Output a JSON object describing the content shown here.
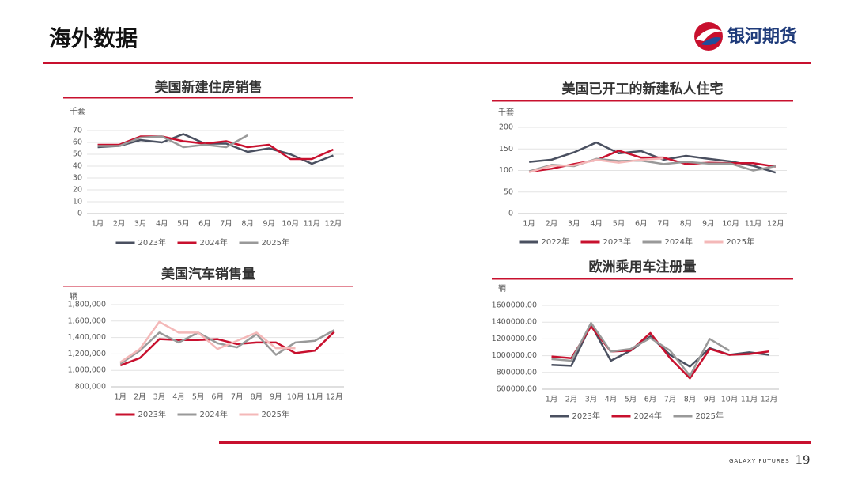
{
  "header": {
    "title": "海外数据",
    "brand": "银河期货"
  },
  "footer": {
    "tagline": "GALAXY FUTURES",
    "page": "19"
  },
  "chart_data": [
    {
      "type": "line",
      "title": "美国新建住房销售",
      "unit": "千套",
      "categories": [
        "1月",
        "2月",
        "3月",
        "4月",
        "5月",
        "6月",
        "7月",
        "8月",
        "9月",
        "10月",
        "11月",
        "12月"
      ],
      "ylim": [
        0,
        70
      ],
      "yticks": [
        0,
        10,
        20,
        30,
        40,
        50,
        60,
        70
      ],
      "grid": true,
      "series": [
        {
          "name": "2023年",
          "color": "#4a5060",
          "values": [
            56,
            57,
            62,
            60,
            67,
            59,
            59,
            52,
            55,
            50,
            42,
            49
          ]
        },
        {
          "name": "2024年",
          "color": "#c8102e",
          "values": [
            58,
            58,
            65,
            65,
            61,
            59,
            61,
            56,
            58,
            46,
            46,
            54
          ]
        },
        {
          "name": "2025年",
          "color": "#999999",
          "values": [
            57,
            57,
            64,
            65,
            56,
            58,
            56,
            66,
            null,
            null,
            null,
            null
          ]
        }
      ]
    },
    {
      "type": "line",
      "title": "美国已开工的新建私人住宅",
      "unit": "千套",
      "categories": [
        "1月",
        "2月",
        "3月",
        "4月",
        "5月",
        "6月",
        "7月",
        "8月",
        "9月",
        "10月",
        "11月",
        "12月"
      ],
      "ylim": [
        0,
        200
      ],
      "yticks": [
        0,
        50,
        100,
        150,
        200
      ],
      "grid": true,
      "series": [
        {
          "name": "2022年",
          "color": "#4a5060",
          "values": [
            120,
            125,
            142,
            165,
            140,
            145,
            125,
            134,
            127,
            121,
            111,
            95
          ]
        },
        {
          "name": "2023年",
          "color": "#c8102e",
          "values": [
            97,
            104,
            115,
            124,
            146,
            130,
            130,
            115,
            118,
            117,
            117,
            109
          ]
        },
        {
          "name": "2024年",
          "color": "#999999",
          "values": [
            98,
            113,
            110,
            127,
            122,
            123,
            115,
            120,
            116,
            116,
            100,
            110
          ]
        },
        {
          "name": "2025年",
          "color": "#f4b8b8",
          "values": [
            96,
            111,
            112,
            125,
            118,
            125,
            128,
            null,
            null,
            null,
            null,
            null
          ]
        }
      ]
    },
    {
      "type": "line",
      "title": "美国汽车销售量",
      "unit": "辆",
      "categories": [
        "1月",
        "2月",
        "3月",
        "4月",
        "5月",
        "6月",
        "7月",
        "8月",
        "9月",
        "10月",
        "11月",
        "12月"
      ],
      "ylim": [
        800000,
        1800000
      ],
      "yticks": [
        {
          "value": 800000,
          "label": "800,000"
        },
        {
          "value": 1000000,
          "label": "1,000,000"
        },
        {
          "value": 1200000,
          "label": "1,200,000"
        },
        {
          "value": 1400000,
          "label": "1,400,000"
        },
        {
          "value": 1600000,
          "label": "1,600,000"
        },
        {
          "value": 1800000,
          "label": "1,800,000"
        }
      ],
      "grid": true,
      "series": [
        {
          "name": "2023年",
          "color": "#c8102e",
          "values": [
            1060000,
            1150000,
            1380000,
            1370000,
            1370000,
            1380000,
            1320000,
            1340000,
            1340000,
            1210000,
            1240000,
            1470000
          ]
        },
        {
          "name": "2024年",
          "color": "#999999",
          "values": [
            1080000,
            1240000,
            1460000,
            1340000,
            1460000,
            1330000,
            1280000,
            1440000,
            1190000,
            1340000,
            1360000,
            1490000
          ]
        },
        {
          "name": "2025年",
          "color": "#f4b8b8",
          "values": [
            1100000,
            1260000,
            1590000,
            1460000,
            1460000,
            1260000,
            1360000,
            1460000,
            1270000,
            1270000,
            null,
            null
          ]
        }
      ]
    },
    {
      "type": "line",
      "title": "欧洲乘用车注册量",
      "unit": "辆",
      "categories": [
        "1月",
        "2月",
        "3月",
        "4月",
        "5月",
        "6月",
        "7月",
        "8月",
        "9月",
        "10月",
        "11月",
        "12月"
      ],
      "ylim": [
        600000,
        1600000
      ],
      "yticks": [
        {
          "value": 600000,
          "label": "600000.00"
        },
        {
          "value": 800000,
          "label": "800000.00"
        },
        {
          "value": 1000000,
          "label": "1000000.00"
        },
        {
          "value": 1200000,
          "label": "1200000.00"
        },
        {
          "value": 1400000,
          "label": "1400000.00"
        },
        {
          "value": 1600000,
          "label": "1600000.00"
        }
      ],
      "grid": true,
      "series": [
        {
          "name": "2023年",
          "color": "#4a5060",
          "values": [
            890000,
            880000,
            1370000,
            940000,
            1060000,
            1230000,
            1010000,
            870000,
            1090000,
            1010000,
            1040000,
            1010000
          ]
        },
        {
          "name": "2024年",
          "color": "#c8102e",
          "values": [
            990000,
            970000,
            1350000,
            1050000,
            1060000,
            1270000,
            970000,
            730000,
            1080000,
            1010000,
            1020000,
            1050000
          ]
        },
        {
          "name": "2025年",
          "color": "#999999",
          "values": [
            960000,
            940000,
            1390000,
            1050000,
            1080000,
            1210000,
            1060000,
            760000,
            1200000,
            1060000,
            null,
            null
          ]
        }
      ]
    }
  ]
}
